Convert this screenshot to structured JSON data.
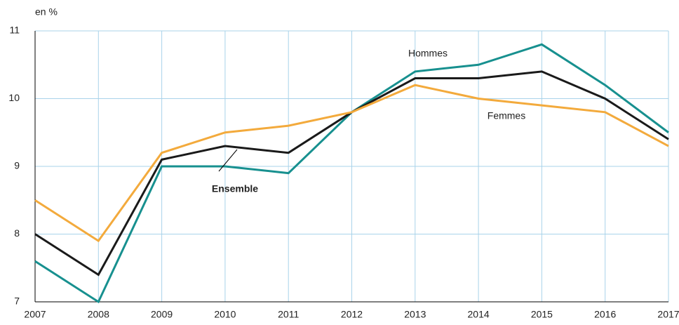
{
  "chart_data": {
    "type": "line",
    "y_label": "en %",
    "x": [
      2007,
      2008,
      2009,
      2010,
      2011,
      2012,
      2013,
      2014,
      2015,
      2016,
      2017
    ],
    "xlim": [
      2007,
      2017
    ],
    "xticks": [
      2007,
      2008,
      2009,
      2010,
      2011,
      2012,
      2013,
      2014,
      2015,
      2016,
      2017
    ],
    "ylim": [
      7,
      11
    ],
    "yticks": [
      7,
      8,
      9,
      10,
      11
    ],
    "grid": true,
    "series": [
      {
        "name": "Hommes",
        "color": "#17908f",
        "values": [
          7.6,
          7.0,
          9.0,
          9.0,
          8.9,
          9.8,
          10.4,
          10.5,
          10.8,
          10.2,
          9.5
        ]
      },
      {
        "name": "Ensemble",
        "color": "#1a1a1a",
        "values": [
          8.0,
          7.4,
          9.1,
          9.3,
          9.2,
          9.8,
          10.3,
          10.3,
          10.4,
          10.0,
          9.4
        ]
      },
      {
        "name": "Femmes",
        "color": "#f3aa3c",
        "values": [
          8.5,
          7.9,
          9.2,
          9.5,
          9.6,
          9.8,
          10.2,
          10.0,
          9.9,
          9.8,
          9.3
        ]
      }
    ]
  }
}
